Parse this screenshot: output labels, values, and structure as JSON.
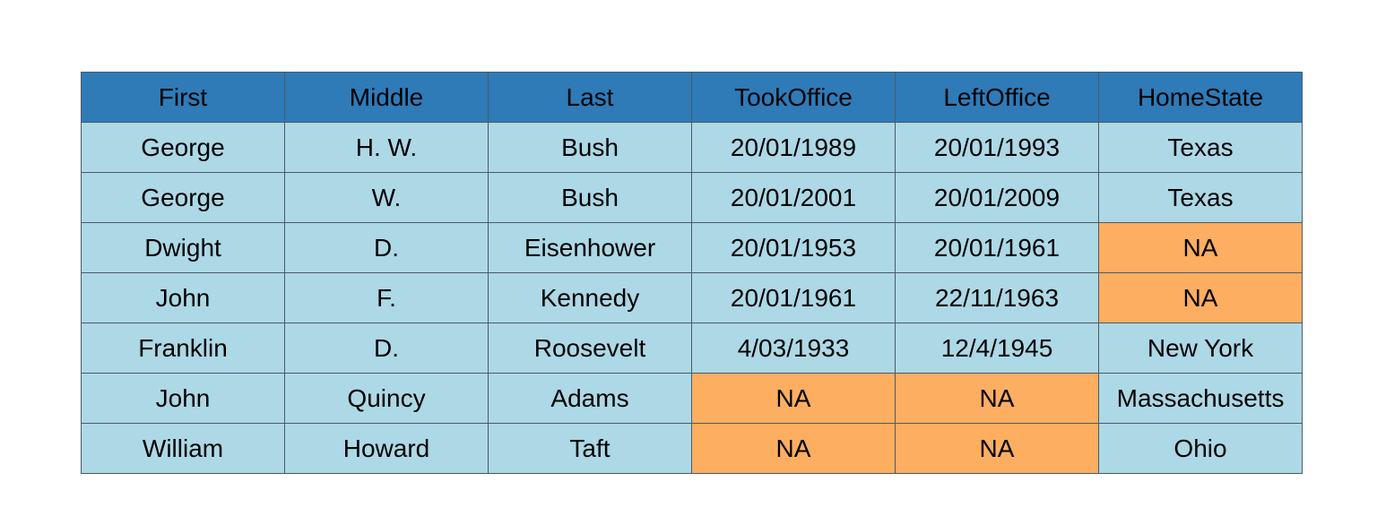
{
  "chart_data": {
    "type": "table",
    "columns": [
      "First",
      "Middle",
      "Last",
      "TookOffice",
      "LeftOffice",
      "HomeState"
    ],
    "rows": [
      [
        "George",
        "H. W.",
        "Bush",
        "20/01/1989",
        "20/01/1993",
        "Texas"
      ],
      [
        "George",
        "W.",
        "Bush",
        "20/01/2001",
        "20/01/2009",
        "Texas"
      ],
      [
        "Dwight",
        "D.",
        "Eisenhower",
        "20/01/1953",
        "20/01/1961",
        "NA"
      ],
      [
        "John",
        "F.",
        "Kennedy",
        "20/01/1961",
        "22/11/1963",
        "NA"
      ],
      [
        "Franklin",
        "D.",
        "Roosevelt",
        "4/03/1933",
        "12/4/1945",
        "New York"
      ],
      [
        "John",
        "Quincy",
        "Adams",
        "NA",
        "NA",
        "Massachusetts"
      ],
      [
        "William",
        "Howard",
        "Taft",
        "NA",
        "NA",
        "Ohio"
      ]
    ],
    "missing_value": "NA"
  },
  "colors": {
    "header_bg": "#2e7bb8",
    "cell_bg": "#add8e6",
    "missing_bg": "#fdae61",
    "border": "#4a5a66",
    "text": "#000000"
  }
}
